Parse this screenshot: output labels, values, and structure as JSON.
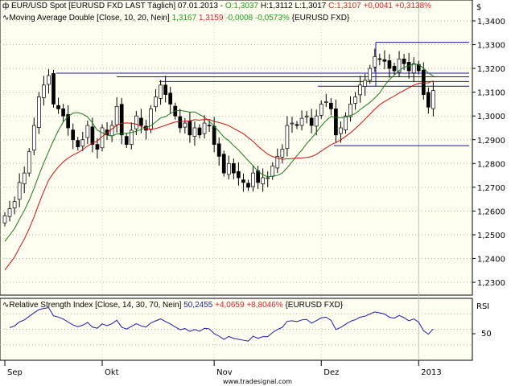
{
  "header": {
    "line1": {
      "label": "EUR/USD Spot [EURUSD FXD LAST Täglich] 07.01.2013 -",
      "open": "O:1,3037",
      "high": "H:1,3112",
      "low": "L:1,3017",
      "close": "C:1,3107 +0,0041 +0,3138%"
    },
    "line2": {
      "label": "Moving Average Double [Close, 10, 20, Nein]",
      "ma1": "1,3167",
      "ma2": "1,3159",
      "chg": "-0,0008 -0,0573%",
      "sym": "{EURUSD FXD}"
    },
    "rsi": {
      "label": "Relative Strength Index [Close, 14, 30, 70, Nein]",
      "val": "50,2455",
      "chg": "+4,0659 +8,8046%",
      "sym": "{EURUSD FXD}"
    }
  },
  "currency": "$",
  "rsi_axis_title": "RSI",
  "rsi_tick": "50",
  "watermark": "www.tradesignal.com",
  "colors": {
    "bg": "#fffef0",
    "ma10": "#1a7a1a",
    "ma20": "#d01010",
    "rsi": "#1a1ab0",
    "hline": "#1a1a90"
  },
  "chart_data": {
    "type": "candlestick",
    "title": "EUR/USD Spot",
    "y_ticks": [
      "1,3400",
      "1,3300",
      "1,3200",
      "1,3100",
      "1,3000",
      "1,2900",
      "1,2800",
      "1,2700",
      "1,2600",
      "1,2500",
      "1,2400",
      "1,2300"
    ],
    "ylim": [
      1.2275,
      1.3445
    ],
    "x_ticks": [
      "Sep",
      "Okt",
      "Nov",
      "Dez",
      "2013"
    ],
    "x_tick_index": [
      0,
      20,
      43,
      65,
      85
    ],
    "closes": [
      1.258,
      1.261,
      1.264,
      1.272,
      1.276,
      1.285,
      1.296,
      1.308,
      1.313,
      1.317,
      1.305,
      1.303,
      1.3,
      1.295,
      1.29,
      1.287,
      1.29,
      1.296,
      1.288,
      1.286,
      1.295,
      1.292,
      1.296,
      1.304,
      1.292,
      1.288,
      1.294,
      1.3,
      1.296,
      1.294,
      1.303,
      1.308,
      1.313,
      1.309,
      1.305,
      1.3,
      1.295,
      1.297,
      1.292,
      1.295,
      1.292,
      1.297,
      1.296,
      1.288,
      1.283,
      1.276,
      1.28,
      1.276,
      1.274,
      1.272,
      1.27,
      1.276,
      1.272,
      1.274,
      1.274,
      1.279,
      1.283,
      1.286,
      1.296,
      1.297,
      1.296,
      1.299,
      1.3,
      1.296,
      1.3,
      1.305,
      1.306,
      1.303,
      1.292,
      1.295,
      1.3,
      1.305,
      1.308,
      1.313,
      1.315,
      1.32,
      1.325,
      1.324,
      1.323,
      1.32,
      1.319,
      1.324,
      1.322,
      1.319,
      1.322,
      1.319,
      1.309,
      1.3037,
      1.3107
    ],
    "hlines": [
      1.331,
      1.318,
      1.3165,
      1.3145,
      1.3125,
      1.2875
    ],
    "rsi_ylim": [
      10,
      90
    ]
  }
}
